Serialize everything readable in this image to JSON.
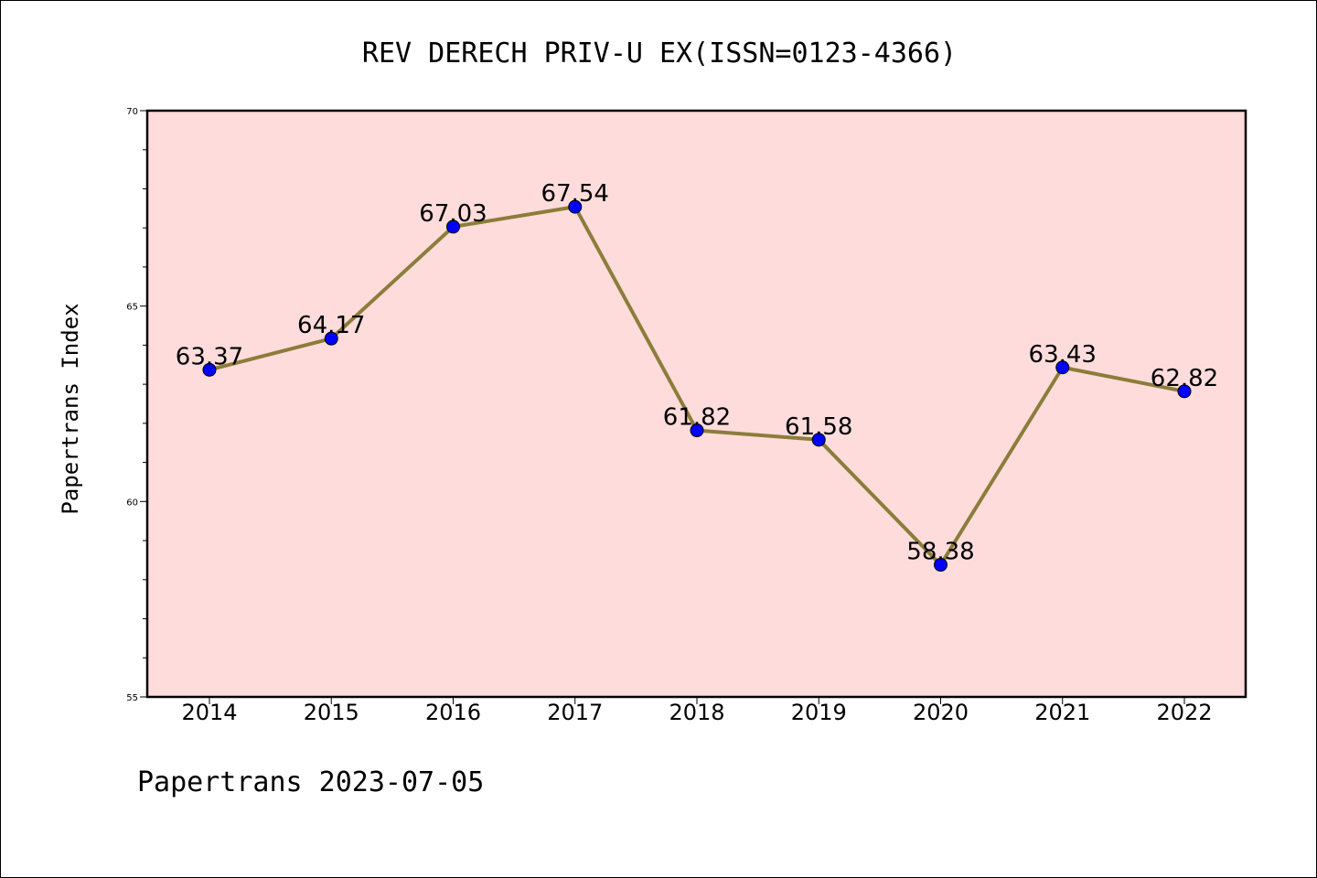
{
  "chart_data": {
    "type": "line",
    "title": "REV DERECH PRIV-U EX(ISSN=0123-4366)",
    "ylabel": "Papertrans Index",
    "footer": "Papertrans 2023-07-05",
    "categories": [
      "2014",
      "2015",
      "2016",
      "2017",
      "2018",
      "2019",
      "2020",
      "2021",
      "2022"
    ],
    "values": [
      63.37,
      64.17,
      67.03,
      67.54,
      61.82,
      61.58,
      58.38,
      63.43,
      62.82
    ],
    "value_labels": [
      "63.37",
      "64.17",
      "67.03",
      "67.54",
      "61.82",
      "61.58",
      "58.38",
      "63.43",
      "62.82"
    ],
    "ylim": [
      55,
      70
    ],
    "yticks": [
      55,
      60,
      65,
      70
    ],
    "ytick_labels": [
      "55",
      "60",
      "65",
      "70"
    ],
    "grid": false,
    "colors": {
      "plot_background": "#ffdcdc",
      "line": "#8b7d3a",
      "marker": "#0000ff"
    }
  }
}
